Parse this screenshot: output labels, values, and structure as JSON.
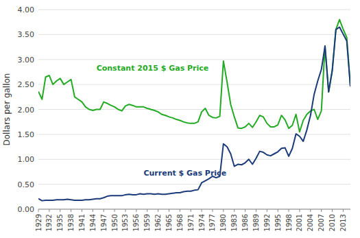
{
  "chart_data": {
    "type": "line",
    "ylabel": "Dollars per gallon",
    "x": [
      1929,
      1930,
      1931,
      1932,
      1933,
      1934,
      1935,
      1936,
      1937,
      1938,
      1939,
      1940,
      1941,
      1942,
      1943,
      1944,
      1945,
      1946,
      1947,
      1948,
      1949,
      1950,
      1951,
      1952,
      1953,
      1954,
      1955,
      1956,
      1957,
      1958,
      1959,
      1960,
      1961,
      1962,
      1963,
      1964,
      1965,
      1966,
      1967,
      1968,
      1969,
      1970,
      1971,
      1972,
      1973,
      1974,
      1975,
      1976,
      1977,
      1978,
      1979,
      1980,
      1981,
      1982,
      1983,
      1984,
      1985,
      1986,
      1987,
      1988,
      1989,
      1990,
      1991,
      1992,
      1993,
      1994,
      1995,
      1996,
      1997,
      1998,
      1999,
      2000,
      2001,
      2002,
      2003,
      2004,
      2005,
      2006,
      2007,
      2008,
      2009,
      2010,
      2011,
      2012,
      2013,
      2014,
      2015
    ],
    "series": [
      {
        "color": "#22aa22",
        "values": [
          2.36,
          2.2,
          2.65,
          2.68,
          2.5,
          2.57,
          2.62,
          2.5,
          2.55,
          2.6,
          2.25,
          2.2,
          2.15,
          2.05,
          2.0,
          1.98,
          2.0,
          2.0,
          2.15,
          2.12,
          2.08,
          2.05,
          2.0,
          1.97,
          2.07,
          2.1,
          2.08,
          2.05,
          2.05,
          2.05,
          2.02,
          2.0,
          1.98,
          1.95,
          1.9,
          1.88,
          1.85,
          1.83,
          1.8,
          1.78,
          1.75,
          1.73,
          1.72,
          1.72,
          1.75,
          1.95,
          2.02,
          1.88,
          1.84,
          1.83,
          1.86,
          2.97,
          2.55,
          2.1,
          1.85,
          1.63,
          1.62,
          1.65,
          1.72,
          1.64,
          1.75,
          1.88,
          1.85,
          1.72,
          1.65,
          1.65,
          1.69,
          1.88,
          1.79,
          1.62,
          1.68,
          1.9,
          1.55,
          1.78,
          1.9,
          1.97,
          2.0,
          1.8,
          1.97,
          3.27,
          2.35,
          2.78,
          3.6,
          3.8,
          3.61,
          3.44,
          2.46
        ]
      },
      {
        "color": "#1a3a7a",
        "values": [
          0.21,
          0.17,
          0.18,
          0.18,
          0.18,
          0.19,
          0.19,
          0.19,
          0.2,
          0.19,
          0.18,
          0.18,
          0.18,
          0.19,
          0.19,
          0.2,
          0.21,
          0.21,
          0.23,
          0.26,
          0.27,
          0.27,
          0.27,
          0.27,
          0.29,
          0.3,
          0.29,
          0.29,
          0.31,
          0.3,
          0.31,
          0.31,
          0.3,
          0.31,
          0.3,
          0.3,
          0.31,
          0.32,
          0.33,
          0.33,
          0.35,
          0.36,
          0.36,
          0.38,
          0.39,
          0.53,
          0.57,
          0.61,
          0.66,
          0.63,
          0.66,
          1.31,
          1.25,
          1.11,
          0.86,
          0.9,
          0.89,
          0.93,
          1.0,
          0.9,
          1.02,
          1.16,
          1.14,
          1.09,
          1.07,
          1.11,
          1.15,
          1.22,
          1.23,
          1.06,
          1.22,
          1.51,
          1.46,
          1.36,
          1.59,
          1.88,
          2.3,
          2.57,
          2.8,
          3.27,
          2.35,
          2.78,
          3.6,
          3.65,
          3.51,
          3.37,
          2.46
        ]
      }
    ],
    "annotations": [
      {
        "text": "Constant 2015 $ Gas Price",
        "x": 1945,
        "y": 2.78,
        "color": "#22aa22"
      },
      {
        "text": "Current $ Gas Price",
        "x": 1958,
        "y": 0.68,
        "color": "#1a3a7a"
      }
    ],
    "xlim": [
      1929,
      2015
    ],
    "xticks": [
      1929,
      1932,
      1935,
      1938,
      1941,
      1944,
      1947,
      1950,
      1953,
      1956,
      1959,
      1962,
      1965,
      1968,
      1971,
      1974,
      1977,
      1980,
      1983,
      1986,
      1989,
      1992,
      1995,
      1998,
      2001,
      2004,
      2007,
      2010,
      2013
    ],
    "ylim": [
      0.0,
      4.0
    ],
    "yticks": [
      {
        "value": 0.0,
        "label": "0.00"
      },
      {
        "value": 0.5,
        "label": "0.50"
      },
      {
        "value": 1.0,
        "label": "1.00"
      },
      {
        "value": 1.5,
        "label": "1.50"
      },
      {
        "value": 2.0,
        "label": "2.00"
      },
      {
        "value": 2.5,
        "label": "2.50"
      },
      {
        "value": 3.0,
        "label": "3.00"
      },
      {
        "value": 3.5,
        "label": "3.50"
      },
      {
        "value": 4.0,
        "label": "4.00"
      }
    ],
    "grid": true
  }
}
